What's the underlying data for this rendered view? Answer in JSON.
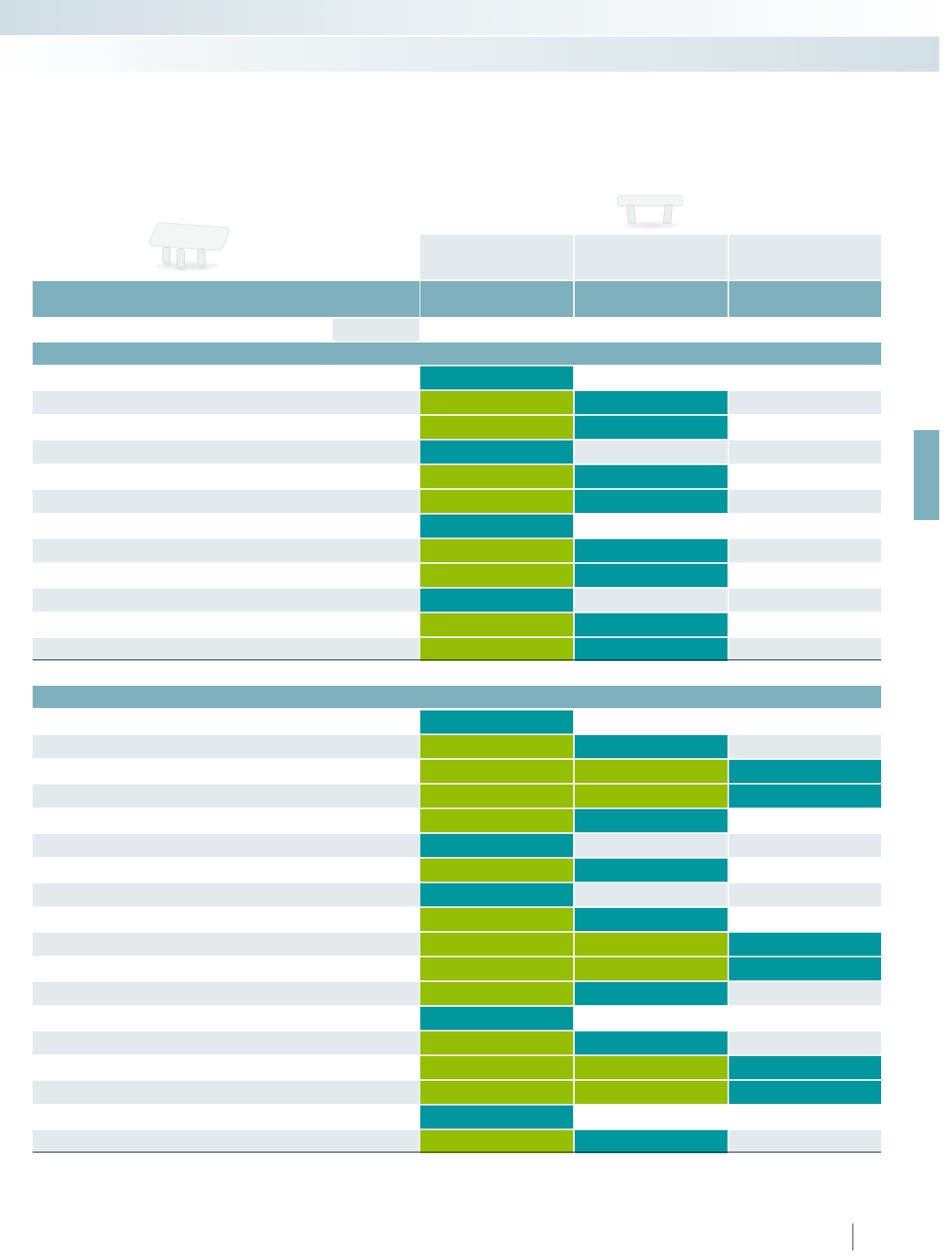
{
  "colors": {
    "lime": "#94bf05",
    "teal": "#00989e",
    "header_blue": "#7eb0bd",
    "row_gray": "#e2eaee"
  },
  "icons": {
    "product_left": "end-cap-product-image",
    "product_right": "end-cap-product-image-side-view"
  },
  "section1": {
    "rows": [
      [
        "w",
        "T",
        "w",
        "w"
      ],
      [
        "g",
        "L",
        "T",
        "g"
      ],
      [
        "w",
        "L",
        "T",
        "w"
      ],
      [
        "g",
        "T",
        "g",
        "g"
      ],
      [
        "w",
        "L",
        "T",
        "w"
      ],
      [
        "g",
        "L",
        "T",
        "g"
      ],
      [
        "w",
        "T",
        "w",
        "w"
      ],
      [
        "g",
        "L",
        "T",
        "g"
      ],
      [
        "w",
        "L",
        "T",
        "w"
      ],
      [
        "g",
        "T",
        "g",
        "g"
      ],
      [
        "w",
        "L",
        "T",
        "w"
      ],
      [
        "g",
        "L",
        "T",
        "g"
      ]
    ]
  },
  "section2": {
    "rows": [
      [
        "w",
        "T",
        "w",
        "w"
      ],
      [
        "g",
        "L",
        "T",
        "g"
      ],
      [
        "w",
        "L",
        "L",
        "T"
      ],
      [
        "g",
        "L",
        "L",
        "T"
      ],
      [
        "w",
        "L",
        "T",
        "w"
      ],
      [
        "g",
        "T",
        "g",
        "g"
      ],
      [
        "w",
        "L",
        "T",
        "w"
      ],
      [
        "g",
        "T",
        "g",
        "g"
      ],
      [
        "w",
        "L",
        "T",
        "w"
      ],
      [
        "g",
        "L",
        "L",
        "T"
      ],
      [
        "w",
        "L",
        "L",
        "T"
      ],
      [
        "g",
        "L",
        "T",
        "g"
      ],
      [
        "w",
        "T",
        "w",
        "w"
      ],
      [
        "g",
        "L",
        "T",
        "g"
      ],
      [
        "w",
        "L",
        "L",
        "T"
      ],
      [
        "g",
        "L",
        "L",
        "T"
      ],
      [
        "w",
        "T",
        "w",
        "w"
      ],
      [
        "g",
        "L",
        "T",
        "g"
      ]
    ]
  }
}
